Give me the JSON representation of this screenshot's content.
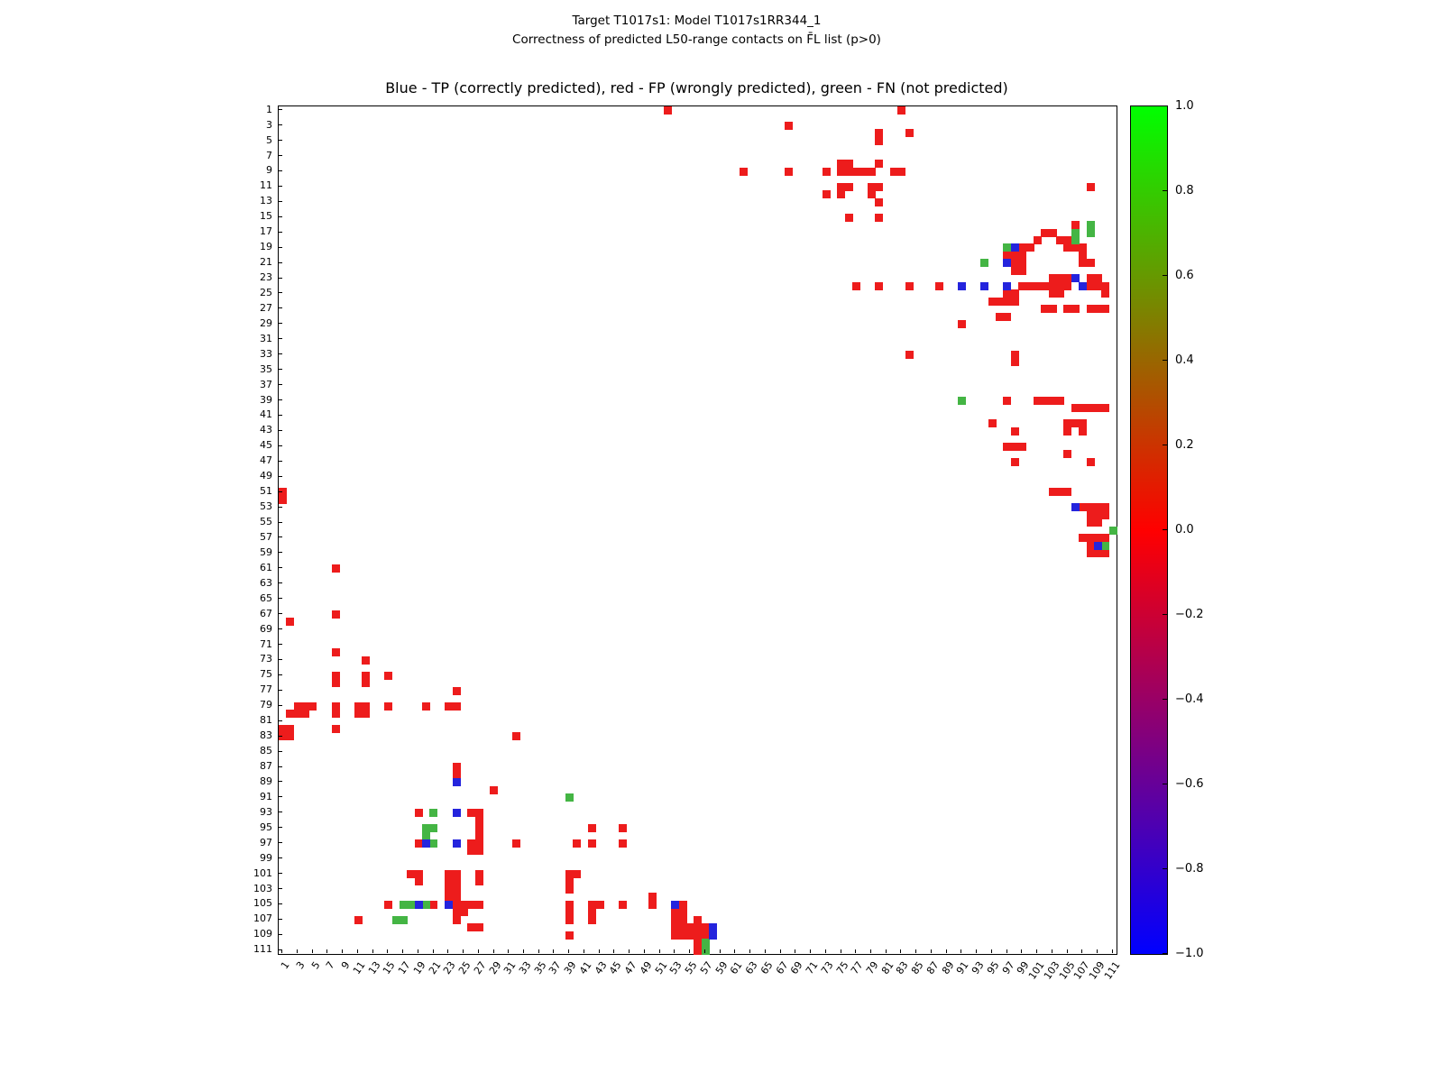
{
  "figure": {
    "suptitle_line1": "Target T1017s1: Model T1017s1RR344_1",
    "suptitle_line2": "Correctness of predicted L50-range contacts on F̄L list (p>0)"
  },
  "chart_data": {
    "type": "heatmap",
    "title": "Blue - TP (correctly predicted), red - FP (wrongly predicted), green - FN (not predicted)",
    "grid_size": 111,
    "x_ticks": [
      1,
      3,
      5,
      7,
      9,
      11,
      13,
      15,
      17,
      19,
      21,
      23,
      25,
      27,
      29,
      31,
      33,
      35,
      37,
      39,
      41,
      43,
      45,
      47,
      49,
      51,
      53,
      55,
      57,
      59,
      61,
      63,
      65,
      67,
      69,
      71,
      73,
      75,
      77,
      79,
      81,
      83,
      85,
      87,
      89,
      91,
      93,
      95,
      97,
      99,
      101,
      103,
      105,
      107,
      109,
      111
    ],
    "y_ticks": [
      1,
      3,
      5,
      7,
      9,
      11,
      13,
      15,
      17,
      19,
      21,
      23,
      25,
      27,
      29,
      31,
      33,
      35,
      37,
      39,
      41,
      43,
      45,
      47,
      49,
      51,
      53,
      55,
      57,
      59,
      61,
      63,
      65,
      67,
      69,
      71,
      73,
      75,
      77,
      79,
      81,
      83,
      85,
      87,
      89,
      91,
      93,
      95,
      97,
      99,
      101,
      103,
      105,
      107,
      109,
      111
    ],
    "colorbar": {
      "tick_labels": [
        "1.0",
        "0.8",
        "0.6",
        "0.4",
        "0.2",
        "0.0",
        "−0.2",
        "−0.4",
        "−0.6",
        "−0.8",
        "−1.0"
      ],
      "top_color": "#00ff00",
      "mid_color": "#ff0000",
      "bottom_color": "#0000ff"
    },
    "colors": {
      "tp": "#2424dd",
      "fp": "#ed1c1c",
      "fn": "#44b544"
    },
    "legend": {
      "tp": "TP (correctly predicted)",
      "fp": "FP (wrongly predicted)",
      "fn": "FN (not predicted)"
    },
    "cells": {
      "fp": [
        [
          52,
          1
        ],
        [
          83,
          1
        ],
        [
          68,
          3
        ],
        [
          80,
          4
        ],
        [
          80,
          5
        ],
        [
          84,
          4
        ],
        [
          62,
          9
        ],
        [
          68,
          9
        ],
        [
          73,
          9
        ],
        [
          75,
          8
        ],
        [
          76,
          8
        ],
        [
          75,
          9
        ],
        [
          76,
          9
        ],
        [
          77,
          9
        ],
        [
          78,
          9
        ],
        [
          79,
          9
        ],
        [
          80,
          8
        ],
        [
          82,
          9
        ],
        [
          83,
          9
        ],
        [
          73,
          12
        ],
        [
          75,
          11
        ],
        [
          76,
          11
        ],
        [
          75,
          12
        ],
        [
          79,
          11
        ],
        [
          80,
          11
        ],
        [
          79,
          12
        ],
        [
          80,
          13
        ],
        [
          108,
          11
        ],
        [
          76,
          15
        ],
        [
          80,
          15
        ],
        [
          106,
          16
        ],
        [
          102,
          17
        ],
        [
          103,
          17
        ],
        [
          101,
          18
        ],
        [
          104,
          18
        ],
        [
          105,
          18
        ],
        [
          99,
          19
        ],
        [
          100,
          19
        ],
        [
          105,
          19
        ],
        [
          106,
          19
        ],
        [
          107,
          19
        ],
        [
          97,
          20
        ],
        [
          98,
          20
        ],
        [
          99,
          20
        ],
        [
          107,
          20
        ],
        [
          98,
          21
        ],
        [
          99,
          21
        ],
        [
          107,
          21
        ],
        [
          108,
          21
        ],
        [
          98,
          22
        ],
        [
          99,
          22
        ],
        [
          103,
          23
        ],
        [
          104,
          23
        ],
        [
          105,
          23
        ],
        [
          108,
          23
        ],
        [
          109,
          23
        ],
        [
          77,
          24
        ],
        [
          80,
          24
        ],
        [
          84,
          24
        ],
        [
          88,
          24
        ],
        [
          99,
          24
        ],
        [
          100,
          24
        ],
        [
          101,
          24
        ],
        [
          102,
          24
        ],
        [
          103,
          24
        ],
        [
          104,
          24
        ],
        [
          105,
          24
        ],
        [
          108,
          24
        ],
        [
          109,
          24
        ],
        [
          110,
          24
        ],
        [
          97,
          25
        ],
        [
          98,
          25
        ],
        [
          103,
          25
        ],
        [
          104,
          25
        ],
        [
          110,
          25
        ],
        [
          95,
          26
        ],
        [
          96,
          26
        ],
        [
          97,
          26
        ],
        [
          98,
          26
        ],
        [
          102,
          27
        ],
        [
          103,
          27
        ],
        [
          105,
          27
        ],
        [
          106,
          27
        ],
        [
          108,
          27
        ],
        [
          109,
          27
        ],
        [
          110,
          27
        ],
        [
          96,
          28
        ],
        [
          97,
          28
        ],
        [
          91,
          29
        ],
        [
          84,
          33
        ],
        [
          98,
          33
        ],
        [
          98,
          34
        ],
        [
          97,
          39
        ],
        [
          101,
          39
        ],
        [
          102,
          39
        ],
        [
          103,
          39
        ],
        [
          104,
          39
        ],
        [
          106,
          40
        ],
        [
          107,
          40
        ],
        [
          108,
          40
        ],
        [
          109,
          40
        ],
        [
          110,
          40
        ],
        [
          95,
          42
        ],
        [
          105,
          42
        ],
        [
          106,
          42
        ],
        [
          107,
          42
        ],
        [
          98,
          43
        ],
        [
          105,
          43
        ],
        [
          107,
          43
        ],
        [
          97,
          45
        ],
        [
          98,
          45
        ],
        [
          99,
          45
        ],
        [
          105,
          46
        ],
        [
          98,
          47
        ],
        [
          108,
          47
        ],
        [
          1,
          51
        ],
        [
          1,
          52
        ],
        [
          103,
          51
        ],
        [
          104,
          51
        ],
        [
          105,
          51
        ],
        [
          107,
          53
        ],
        [
          108,
          53
        ],
        [
          109,
          53
        ],
        [
          110,
          53
        ],
        [
          108,
          54
        ],
        [
          109,
          54
        ],
        [
          110,
          54
        ],
        [
          108,
          55
        ],
        [
          109,
          55
        ],
        [
          107,
          57
        ],
        [
          108,
          57
        ],
        [
          109,
          57
        ],
        [
          110,
          57
        ],
        [
          108,
          58
        ],
        [
          110,
          58
        ],
        [
          108,
          59
        ],
        [
          109,
          59
        ],
        [
          110,
          59
        ],
        [
          8,
          61
        ],
        [
          8,
          67
        ],
        [
          2,
          68
        ],
        [
          8,
          72
        ],
        [
          12,
          73
        ],
        [
          8,
          75
        ],
        [
          12,
          75
        ],
        [
          15,
          75
        ],
        [
          8,
          76
        ],
        [
          12,
          76
        ],
        [
          24,
          77
        ],
        [
          3,
          79
        ],
        [
          4,
          79
        ],
        [
          5,
          79
        ],
        [
          8,
          79
        ],
        [
          11,
          79
        ],
        [
          12,
          79
        ],
        [
          15,
          79
        ],
        [
          20,
          79
        ],
        [
          23,
          79
        ],
        [
          24,
          79
        ],
        [
          2,
          80
        ],
        [
          3,
          80
        ],
        [
          4,
          80
        ],
        [
          8,
          80
        ],
        [
          11,
          80
        ],
        [
          12,
          80
        ],
        [
          1,
          82
        ],
        [
          2,
          82
        ],
        [
          8,
          82
        ],
        [
          1,
          83
        ],
        [
          2,
          83
        ],
        [
          32,
          83
        ],
        [
          24,
          87
        ],
        [
          24,
          88
        ],
        [
          29,
          90
        ],
        [
          19,
          93
        ],
        [
          26,
          93
        ],
        [
          27,
          93
        ],
        [
          27,
          94
        ],
        [
          27,
          95
        ],
        [
          42,
          95
        ],
        [
          46,
          95
        ],
        [
          27,
          96
        ],
        [
          19,
          97
        ],
        [
          26,
          97
        ],
        [
          27,
          97
        ],
        [
          32,
          97
        ],
        [
          40,
          97
        ],
        [
          42,
          97
        ],
        [
          46,
          97
        ],
        [
          26,
          98
        ],
        [
          27,
          98
        ],
        [
          18,
          101
        ],
        [
          19,
          101
        ],
        [
          23,
          101
        ],
        [
          24,
          101
        ],
        [
          27,
          101
        ],
        [
          39,
          101
        ],
        [
          40,
          101
        ],
        [
          19,
          102
        ],
        [
          23,
          102
        ],
        [
          24,
          102
        ],
        [
          27,
          102
        ],
        [
          39,
          102
        ],
        [
          23,
          103
        ],
        [
          24,
          103
        ],
        [
          39,
          103
        ],
        [
          23,
          104
        ],
        [
          24,
          104
        ],
        [
          50,
          104
        ],
        [
          15,
          105
        ],
        [
          21,
          105
        ],
        [
          24,
          105
        ],
        [
          25,
          105
        ],
        [
          26,
          105
        ],
        [
          27,
          105
        ],
        [
          39,
          105
        ],
        [
          42,
          105
        ],
        [
          43,
          105
        ],
        [
          46,
          105
        ],
        [
          50,
          105
        ],
        [
          54,
          105
        ],
        [
          24,
          106
        ],
        [
          25,
          106
        ],
        [
          39,
          106
        ],
        [
          42,
          106
        ],
        [
          53,
          106
        ],
        [
          54,
          106
        ],
        [
          11,
          107
        ],
        [
          24,
          107
        ],
        [
          39,
          107
        ],
        [
          42,
          107
        ],
        [
          53,
          107
        ],
        [
          54,
          107
        ],
        [
          56,
          107
        ],
        [
          26,
          108
        ],
        [
          27,
          108
        ],
        [
          53,
          108
        ],
        [
          54,
          108
        ],
        [
          55,
          108
        ],
        [
          56,
          108
        ],
        [
          57,
          108
        ],
        [
          39,
          109
        ],
        [
          53,
          109
        ],
        [
          54,
          109
        ],
        [
          55,
          109
        ],
        [
          56,
          109
        ],
        [
          57,
          109
        ],
        [
          56,
          110
        ],
        [
          57,
          110
        ],
        [
          56,
          111
        ]
      ],
      "tp": [
        [
          98,
          19
        ],
        [
          97,
          21
        ],
        [
          106,
          23
        ],
        [
          91,
          24
        ],
        [
          94,
          24
        ],
        [
          97,
          24
        ],
        [
          107,
          24
        ],
        [
          106,
          53
        ],
        [
          109,
          58
        ],
        [
          24,
          89
        ],
        [
          24,
          93
        ],
        [
          20,
          97
        ],
        [
          24,
          97
        ],
        [
          19,
          105
        ],
        [
          23,
          105
        ],
        [
          53,
          105
        ],
        [
          58,
          108
        ],
        [
          58,
          109
        ]
      ],
      "fn": [
        [
          108,
          16
        ],
        [
          108,
          17
        ],
        [
          106,
          17
        ],
        [
          106,
          18
        ],
        [
          97,
          19
        ],
        [
          94,
          21
        ],
        [
          91,
          39
        ],
        [
          111,
          56
        ],
        [
          110,
          58
        ],
        [
          39,
          91
        ],
        [
          21,
          93
        ],
        [
          20,
          95
        ],
        [
          21,
          95
        ],
        [
          20,
          96
        ],
        [
          21,
          97
        ],
        [
          17,
          105
        ],
        [
          18,
          105
        ],
        [
          20,
          105
        ],
        [
          16,
          107
        ],
        [
          17,
          107
        ],
        [
          57,
          110
        ],
        [
          57,
          111
        ]
      ]
    }
  }
}
